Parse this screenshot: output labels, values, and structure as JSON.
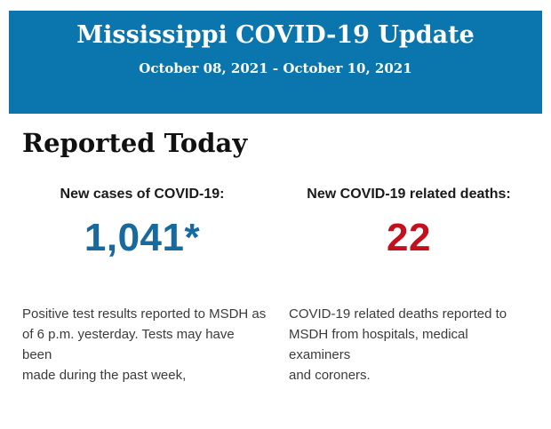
{
  "header": {
    "title": "Mississippi COVID-19 Update",
    "date_range": "October 08, 2021 - October 10, 2021",
    "background_color": "#0a76ad",
    "text_color": "#ffffff"
  },
  "body": {
    "heading": "Reported Today",
    "stats": [
      {
        "label": "New cases of COVID-19:",
        "value": "1,041*",
        "value_color": "#17699e",
        "description": "Positive test results reported to MSDH as\nof 6 p.m. yesterday. Tests may have been\nmade during the past week,"
      },
      {
        "label": "New COVID-19 related deaths:",
        "value": "22",
        "value_color": "#c3101c",
        "description": "COVID-19 related deaths reported to\nMSDH from hospitals, medical examiners\nand coroners."
      }
    ]
  }
}
